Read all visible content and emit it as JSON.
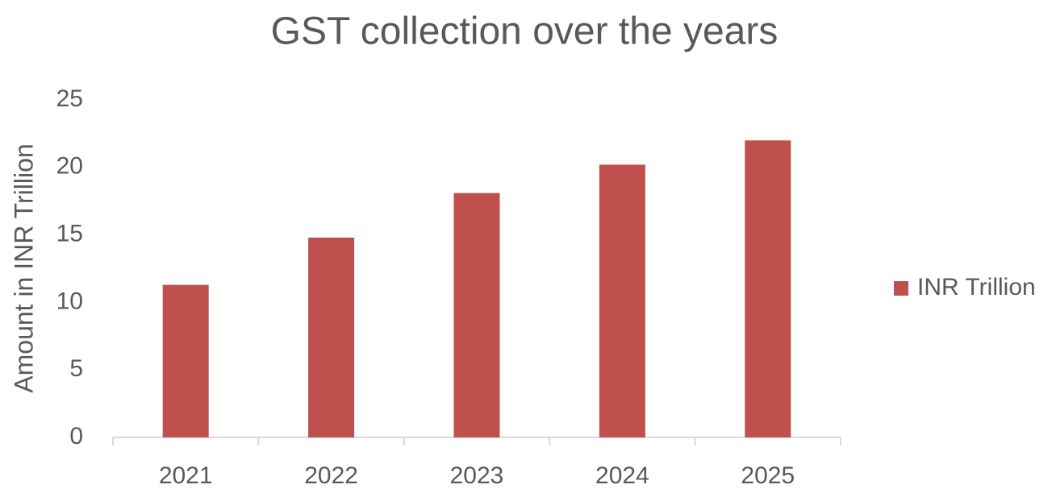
{
  "chart_data": {
    "type": "bar",
    "title": "GST collection over the years",
    "y_label": "Amount in INR Trillion",
    "categories": [
      "2021",
      "2022",
      "2023",
      "2024",
      "2025"
    ],
    "series": [
      {
        "name": "INR Trillion",
        "color": "#c0504d",
        "values": [
          11.3,
          14.8,
          18.1,
          20.2,
          22.0
        ]
      }
    ],
    "ylim": [
      0,
      25
    ],
    "yticks": [
      0,
      5,
      10,
      15,
      20,
      25
    ],
    "grid": false,
    "legend": "right"
  }
}
